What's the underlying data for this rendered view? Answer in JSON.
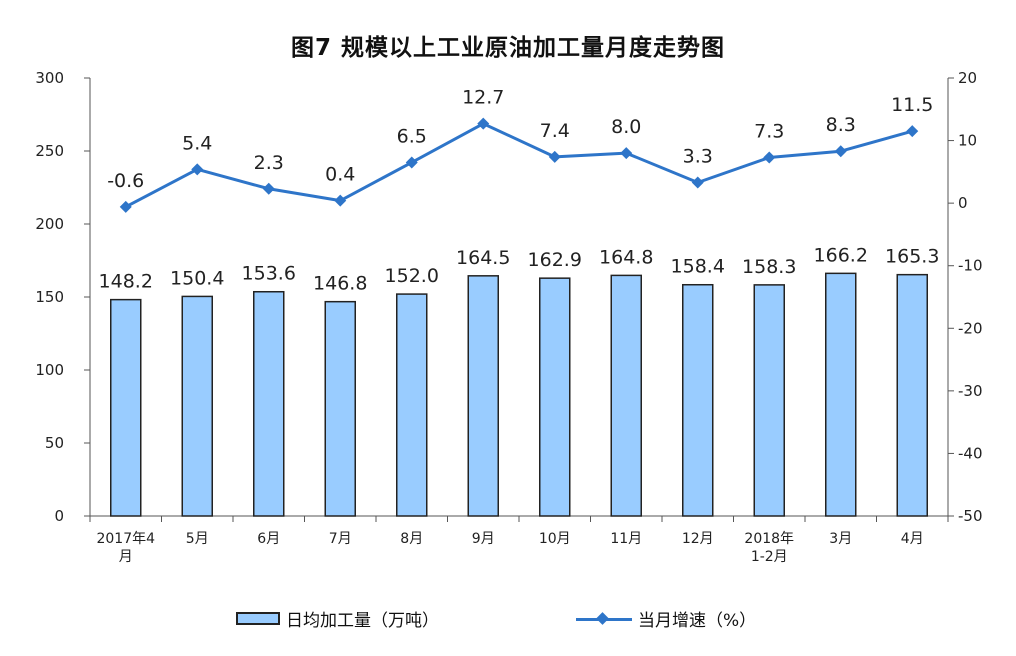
{
  "chart_data": {
    "type": "bar+line",
    "title": "图7  规模以上工业原油加工量月度走势图",
    "categories": [
      [
        "2017年4",
        "月"
      ],
      [
        "5月"
      ],
      [
        "6月"
      ],
      [
        "7月"
      ],
      [
        "8月"
      ],
      [
        "9月"
      ],
      [
        "10月"
      ],
      [
        "11月"
      ],
      [
        "12月"
      ],
      [
        "2018年",
        "1-2月"
      ],
      [
        "3月"
      ],
      [
        "4月"
      ]
    ],
    "series": [
      {
        "name": "日均加工量（万吨）",
        "type": "bar",
        "axis": "left",
        "color": "#99ccff",
        "values": [
          148.2,
          150.4,
          153.6,
          146.8,
          152.0,
          164.5,
          162.9,
          164.8,
          158.4,
          158.3,
          166.2,
          165.3
        ],
        "labels": [
          "148.2",
          "150.4",
          "153.6",
          "146.8",
          "152.0",
          "164.5",
          "162.9",
          "164.8",
          "158.4",
          "158.3",
          "166.2",
          "165.3"
        ]
      },
      {
        "name": "当月增速（%）",
        "type": "line",
        "axis": "right",
        "color": "#2e75c9",
        "values": [
          -0.6,
          5.4,
          2.3,
          0.4,
          6.5,
          12.7,
          7.4,
          8.0,
          3.3,
          7.3,
          8.3,
          11.5
        ],
        "labels": [
          "-0.6",
          "5.4",
          "2.3",
          "0.4",
          "6.5",
          "12.7",
          "7.4",
          "8.0",
          "3.3",
          "7.3",
          "8.3",
          "11.5"
        ]
      }
    ],
    "y_left": {
      "min": 0,
      "max": 300,
      "ticks": [
        "0",
        "50",
        "100",
        "150",
        "200",
        "250",
        "300"
      ]
    },
    "y_right": {
      "min": -50,
      "max": 20,
      "ticks": [
        "-50",
        "-40",
        "-30",
        "-20",
        "-10",
        "0",
        "10",
        "20"
      ]
    },
    "grid": false,
    "legend_position": "bottom"
  }
}
